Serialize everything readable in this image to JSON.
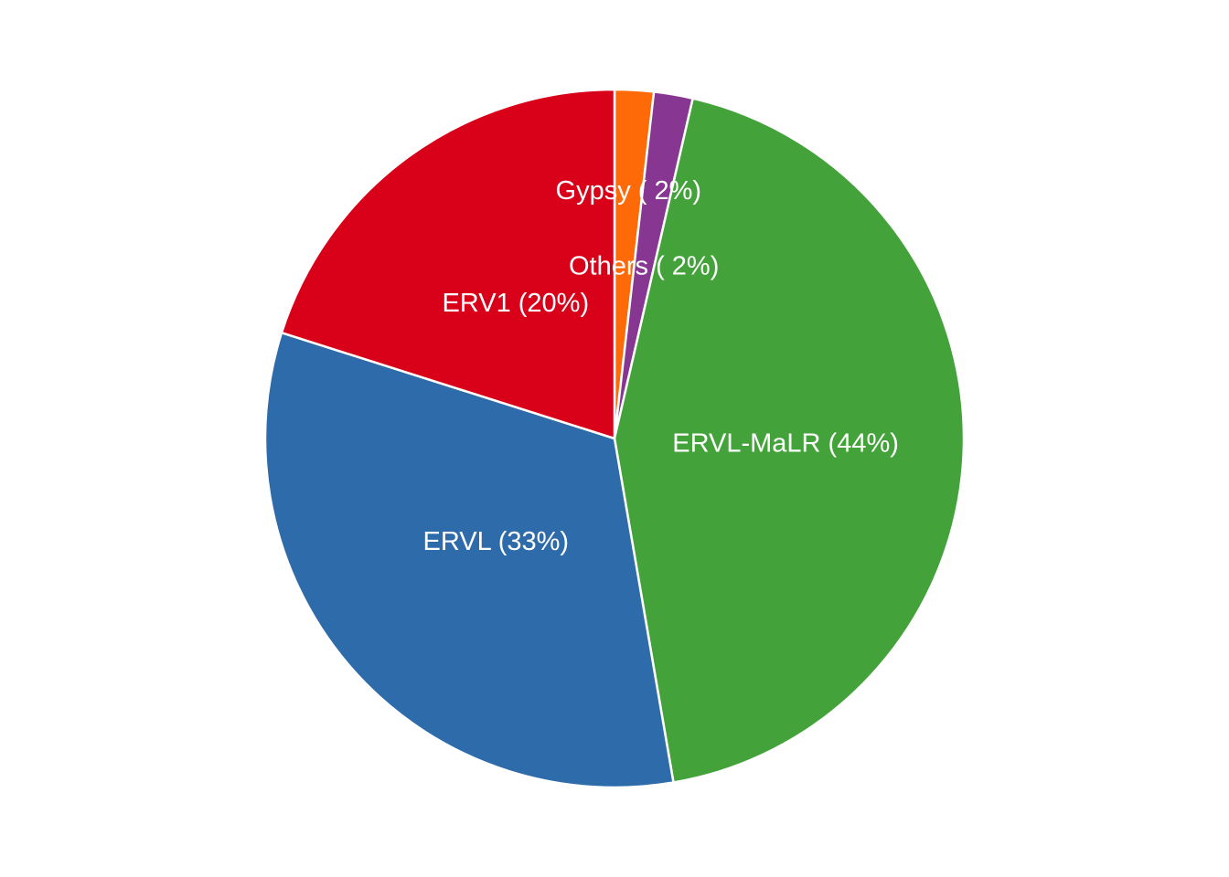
{
  "chart_data": {
    "type": "pie",
    "title": "",
    "start": "top",
    "direction": "clockwise",
    "legend": "none",
    "slices": [
      {
        "name": "Gypsy",
        "label": "Gypsy ( 2%)",
        "value": 1.8,
        "color": "#FF6A09"
      },
      {
        "name": "Others",
        "label": "Others ( 2%)",
        "value": 1.8,
        "color": "#873791"
      },
      {
        "name": "ERVL-MaLR",
        "label": "ERVL-MaLR (44%)",
        "value": 43.7,
        "color": "#43A33A"
      },
      {
        "name": "ERVL",
        "label": "ERVL (33%)",
        "value": 32.6,
        "color": "#2E6BAA"
      },
      {
        "name": "ERV1",
        "label": "ERV1 (20%)",
        "value": 20.1,
        "color": "#D90019"
      }
    ]
  }
}
